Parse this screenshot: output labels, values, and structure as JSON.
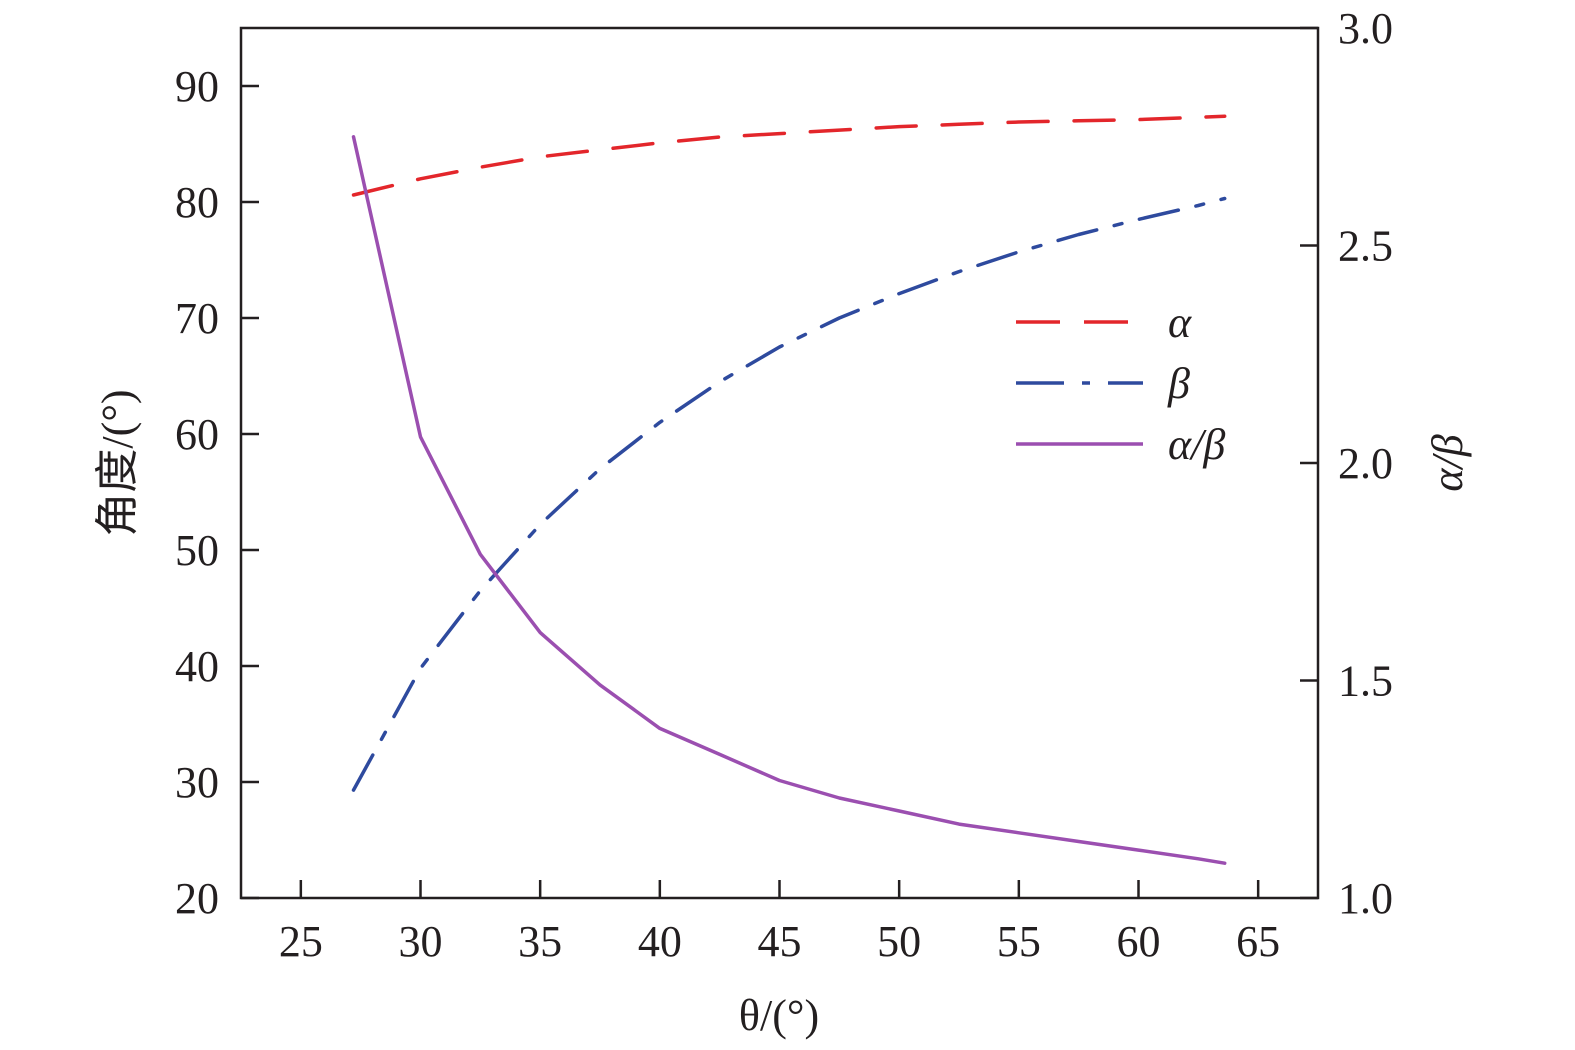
{
  "chart_data": {
    "type": "line",
    "xlabel": "θ/(°)",
    "ylabel_left": "角度/(°)",
    "ylabel_right": "α/β",
    "xlim": [
      22.5,
      67.5
    ],
    "ylim_left": [
      20,
      95
    ],
    "ylim_right": [
      1.0,
      3.0
    ],
    "x_ticks": [
      25,
      30,
      35,
      40,
      45,
      50,
      55,
      60,
      65
    ],
    "y_left_ticks": [
      20,
      30,
      40,
      50,
      60,
      70,
      80,
      90
    ],
    "y_right_ticks": [
      "1.0",
      "1.5",
      "2.0",
      "2.5",
      "3.0"
    ],
    "legend_position": "right-center",
    "grid": false,
    "x": [
      27.2,
      30,
      32.5,
      35,
      37.5,
      40,
      42.5,
      45,
      47.5,
      50,
      52.5,
      55,
      57.5,
      60,
      62.5,
      63.6
    ],
    "series": [
      {
        "name": "α",
        "axis": "left",
        "style": "dashed",
        "color": "#e3262b",
        "values": [
          80.6,
          82.0,
          83.0,
          83.9,
          84.5,
          85.1,
          85.6,
          85.9,
          86.2,
          86.5,
          86.7,
          86.9,
          87.0,
          87.1,
          87.3,
          87.4
        ]
      },
      {
        "name": "β",
        "axis": "left",
        "style": "dash-dot",
        "color": "#2e4a9e",
        "values": [
          29.3,
          39.8,
          46.5,
          52.2,
          57.0,
          61.0,
          64.5,
          67.5,
          70.0,
          72.1,
          74.0,
          75.7,
          77.2,
          78.5,
          79.7,
          80.3
        ]
      },
      {
        "name": "α/β",
        "axis": "right",
        "style": "solid",
        "color": "#9b4fb0",
        "values": [
          2.75,
          2.06,
          1.79,
          1.61,
          1.49,
          1.39,
          1.33,
          1.27,
          1.23,
          1.2,
          1.17,
          1.15,
          1.13,
          1.11,
          1.09,
          1.08
        ]
      }
    ]
  }
}
